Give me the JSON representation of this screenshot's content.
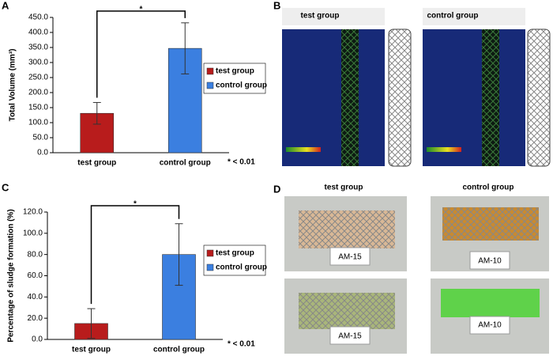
{
  "chart_data": [
    {
      "type": "bar",
      "panel_label": "A",
      "ylabel": "Total Volume (mm³)",
      "categories": [
        "test group",
        "control group"
      ],
      "values": [
        131,
        347
      ],
      "errors": [
        36,
        85
      ],
      "colors": [
        "#b81c1c",
        "#3b7fe0"
      ],
      "legend": [
        "test group",
        "control group"
      ],
      "significance": "*",
      "note": "* < 0.01",
      "ylim": [
        0,
        450
      ],
      "yticks": [
        {
          "value": 0,
          "label": "0.0"
        },
        {
          "value": 50,
          "label": "50.0"
        },
        {
          "value": 100,
          "label": "100.0"
        },
        {
          "value": 150,
          "label": "150.0"
        },
        {
          "value": 200,
          "label": "200.0"
        },
        {
          "value": 250,
          "label": "250.0"
        },
        {
          "value": 300,
          "label": "300.0"
        },
        {
          "value": 350,
          "label": "350.0"
        },
        {
          "value": 400,
          "label": "400.0"
        },
        {
          "value": 450,
          "label": "450.0"
        }
      ]
    },
    {
      "type": "bar",
      "panel_label": "C",
      "ylabel": "Percentage of sludge formation (%)",
      "categories": [
        "test group",
        "control group"
      ],
      "values": [
        15,
        80
      ],
      "errors": [
        14,
        29
      ],
      "colors": [
        "#b81c1c",
        "#3b7fe0"
      ],
      "legend": [
        "test group",
        "control group"
      ],
      "significance": "*",
      "note": "* < 0.01",
      "ylim": [
        0,
        120
      ],
      "yticks": [
        {
          "value": 0,
          "label": "0.0"
        },
        {
          "value": 20,
          "label": "20.0"
        },
        {
          "value": 40,
          "label": "40.0"
        },
        {
          "value": 60,
          "label": "60.0"
        },
        {
          "value": 80,
          "label": "80.0"
        },
        {
          "value": 100,
          "label": "100.0"
        },
        {
          "value": 120,
          "label": "120.0"
        }
      ]
    }
  ],
  "panels": {
    "B": {
      "label": "B",
      "titles": [
        "test group",
        "control group"
      ]
    },
    "D": {
      "label": "D",
      "titles": [
        "test group",
        "control group"
      ],
      "tags": [
        [
          "AM-15",
          "AM-10"
        ],
        [
          "AM-15",
          "AM-10"
        ]
      ]
    }
  }
}
